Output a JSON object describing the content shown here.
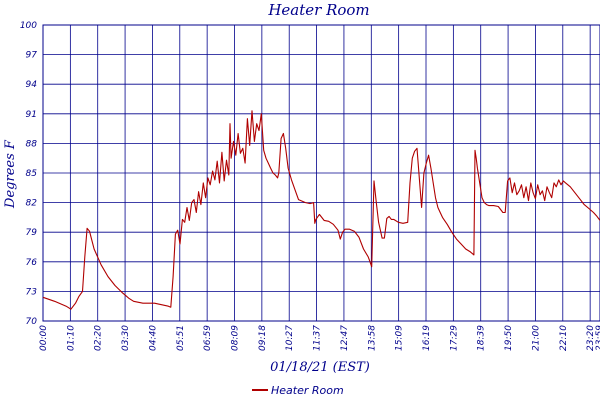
{
  "colors": {
    "axis": "#00008b",
    "grid": "#00008b",
    "series": "#b00000",
    "text": "#00008b"
  },
  "chart_data": {
    "type": "line",
    "title": "Heater Room",
    "xlabel": "01/18/21 (EST)",
    "ylabel": "Degrees F",
    "grid": true,
    "legend_position": "bottom",
    "y_tick_labels": [
      "70",
      "73",
      "76",
      "79",
      "82",
      "85",
      "88",
      "91",
      "94",
      "97",
      "100"
    ],
    "ylim": [
      70,
      100
    ],
    "x_tick_labels": [
      "00:00",
      "01:10",
      "02:20",
      "03:30",
      "04:40",
      "05:51",
      "06:59",
      "08:09",
      "09:18",
      "10:27",
      "11:37",
      "12:47",
      "13:58",
      "15:09",
      "16:19",
      "17:29",
      "18:39",
      "19:50",
      "21:00",
      "22:10",
      "23:20",
      "23:59"
    ],
    "x_hours_range": [
      0,
      23.98
    ],
    "series": [
      {
        "name": "Heater Room",
        "x": [
          0,
          0.5,
          1.0,
          1.2,
          1.4,
          1.55,
          1.7,
          1.8,
          1.9,
          2.0,
          2.2,
          2.5,
          2.8,
          3.1,
          3.4,
          3.7,
          3.9,
          4.3,
          4.8,
          5.2,
          5.4,
          5.5,
          5.6,
          5.7,
          5.8,
          5.9,
          6.0,
          6.1,
          6.2,
          6.3,
          6.4,
          6.5,
          6.6,
          6.7,
          6.8,
          6.9,
          7.0,
          7.1,
          7.2,
          7.3,
          7.4,
          7.5,
          7.6,
          7.7,
          7.8,
          7.9,
          8.0,
          8.05,
          8.1,
          8.2,
          8.3,
          8.4,
          8.5,
          8.6,
          8.7,
          8.8,
          8.9,
          9.0,
          9.1,
          9.2,
          9.3,
          9.4,
          9.5,
          9.6,
          9.7,
          9.8,
          9.9,
          10.0,
          10.1,
          10.15,
          10.25,
          10.35,
          10.45,
          10.55,
          10.7,
          10.85,
          11.0,
          11.3,
          11.5,
          11.65,
          11.7,
          11.75,
          11.9,
          12.1,
          12.3,
          12.5,
          12.7,
          12.8,
          12.9,
          13.0,
          13.2,
          13.4,
          13.6,
          13.8,
          14.0,
          14.05,
          14.15,
          14.25,
          14.35,
          14.45,
          14.6,
          14.7,
          14.8,
          14.9,
          15.0,
          15.1,
          15.3,
          15.5,
          15.7,
          15.8,
          15.9,
          16.0,
          16.1,
          16.2,
          16.3,
          16.4,
          16.5,
          16.6,
          16.7,
          16.8,
          16.9,
          17.0,
          17.1,
          17.2,
          17.4,
          17.6,
          17.8,
          18.0,
          18.2,
          18.4,
          18.55,
          18.6,
          18.65,
          18.7,
          18.8,
          18.9,
          19.0,
          19.1,
          19.2,
          19.4,
          19.6,
          19.8,
          19.9,
          20.0,
          20.1,
          20.2,
          20.3,
          20.4,
          20.5,
          20.6,
          20.7,
          20.8,
          20.9,
          21.0,
          21.1,
          21.2,
          21.3,
          21.4,
          21.5,
          21.6,
          21.7,
          21.8,
          21.9,
          22.0,
          22.1,
          22.2,
          22.3,
          22.4,
          22.5,
          22.7,
          22.9,
          23.1,
          23.3,
          23.5,
          23.7,
          23.85,
          23.98
        ],
        "values": [
          72.4,
          72.0,
          71.5,
          71.2,
          71.8,
          72.5,
          73.0,
          76.5,
          79.4,
          79.1,
          77.3,
          75.7,
          74.5,
          73.6,
          72.9,
          72.3,
          72.0,
          71.8,
          71.8,
          71.6,
          71.5,
          71.4,
          74.5,
          78.8,
          79.2,
          77.8,
          80.3,
          80.0,
          81.5,
          80.2,
          82.0,
          82.3,
          81.0,
          83.1,
          81.8,
          84.0,
          82.5,
          84.5,
          83.8,
          85.2,
          84.3,
          86.2,
          84.0,
          87.1,
          84.2,
          86.3,
          84.8,
          90.0,
          86.5,
          88.2,
          86.8,
          89.0,
          87.0,
          87.5,
          86.0,
          90.5,
          87.8,
          91.3,
          88.2,
          90.0,
          89.3,
          91.0,
          87.3,
          86.5,
          86.0,
          85.5,
          85.0,
          84.8,
          84.5,
          85.0,
          88.5,
          89.0,
          87.5,
          85.5,
          84.3,
          83.3,
          82.3,
          82.0,
          81.9,
          82.0,
          79.9,
          80.3,
          80.8,
          80.2,
          80.1,
          79.8,
          79.2,
          78.3,
          79.0,
          79.3,
          79.3,
          79.1,
          78.5,
          77.3,
          76.5,
          76.2,
          75.5,
          84.2,
          82.0,
          80.0,
          78.4,
          78.4,
          80.4,
          80.6,
          80.3,
          80.3,
          80.0,
          79.9,
          80.0,
          84.0,
          86.5,
          87.2,
          87.5,
          84.5,
          81.5,
          85.0,
          86.0,
          86.8,
          85.5,
          84.0,
          82.5,
          81.5,
          81.0,
          80.5,
          79.8,
          79.0,
          78.3,
          77.8,
          77.3,
          77.0,
          76.7,
          87.3,
          86.5,
          85.5,
          84.0,
          82.5,
          82.0,
          81.8,
          81.7,
          81.7,
          81.6,
          81.0,
          81.0,
          84.2,
          84.5,
          83.0,
          84.0,
          82.8,
          83.2,
          83.8,
          82.5,
          83.6,
          82.2,
          84.0,
          83.0,
          82.4,
          83.8,
          82.8,
          83.2,
          82.2,
          83.6,
          83.0,
          82.5,
          84.0,
          83.6,
          84.3,
          83.8,
          84.2,
          84.0,
          83.6,
          83.0,
          82.4,
          81.8,
          81.4,
          81.0,
          80.6,
          80.2
        ]
      }
    ]
  }
}
